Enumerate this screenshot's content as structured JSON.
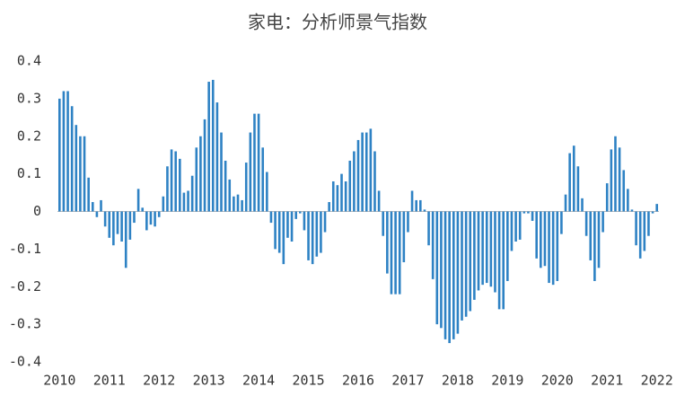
{
  "chart_data": {
    "type": "bar",
    "title": "家电：分析师景气指数",
    "categories": [
      "2010",
      null,
      null,
      null,
      null,
      null,
      null,
      null,
      null,
      null,
      null,
      null,
      "2011",
      null,
      null,
      null,
      null,
      null,
      null,
      null,
      null,
      null,
      null,
      null,
      "2012",
      null,
      null,
      null,
      null,
      null,
      null,
      null,
      null,
      null,
      null,
      null,
      "2013",
      null,
      null,
      null,
      null,
      null,
      null,
      null,
      null,
      null,
      null,
      null,
      "2014",
      null,
      null,
      null,
      null,
      null,
      null,
      null,
      null,
      null,
      null,
      null,
      "2015",
      null,
      null,
      null,
      null,
      null,
      null,
      null,
      null,
      null,
      null,
      null,
      "2016",
      null,
      null,
      null,
      null,
      null,
      null,
      null,
      null,
      null,
      null,
      null,
      "2017",
      null,
      null,
      null,
      null,
      null,
      null,
      null,
      null,
      null,
      null,
      null,
      "2018",
      null,
      null,
      null,
      null,
      null,
      null,
      null,
      null,
      null,
      null,
      null,
      "2019",
      null,
      null,
      null,
      null,
      null,
      null,
      null,
      null,
      null,
      null,
      null,
      "2020",
      null,
      null,
      null,
      null,
      null,
      null,
      null,
      null,
      null,
      null,
      null,
      "2021",
      null,
      null,
      null,
      null,
      null,
      null,
      null,
      null,
      null,
      null,
      null,
      "2022"
    ],
    "values": [
      0.3,
      0.32,
      0.32,
      0.28,
      0.23,
      0.2,
      0.2,
      0.09,
      0.025,
      -0.015,
      0.03,
      -0.04,
      -0.07,
      -0.09,
      -0.06,
      -0.08,
      -0.15,
      -0.075,
      -0.03,
      0.06,
      0.01,
      -0.05,
      -0.035,
      -0.04,
      -0.015,
      0.04,
      0.12,
      0.165,
      0.16,
      0.14,
      0.05,
      0.055,
      0.095,
      0.17,
      0.2,
      0.245,
      0.345,
      0.35,
      0.29,
      0.21,
      0.135,
      0.085,
      0.04,
      0.045,
      0.03,
      0.13,
      0.21,
      0.26,
      0.26,
      0.17,
      0.105,
      -0.03,
      -0.1,
      -0.11,
      -0.14,
      -0.07,
      -0.08,
      -0.02,
      -0.005,
      -0.05,
      -0.13,
      -0.14,
      -0.12,
      -0.11,
      -0.055,
      0.025,
      0.08,
      0.07,
      0.1,
      0.08,
      0.135,
      0.16,
      0.19,
      0.21,
      0.21,
      0.22,
      0.16,
      0.055,
      -0.065,
      -0.165,
      -0.22,
      -0.22,
      -0.22,
      -0.135,
      -0.055,
      0.055,
      0.03,
      0.03,
      0.005,
      -0.09,
      -0.18,
      -0.3,
      -0.31,
      -0.34,
      -0.35,
      -0.34,
      -0.325,
      -0.29,
      -0.28,
      -0.265,
      -0.235,
      -0.21,
      -0.195,
      -0.19,
      -0.2,
      -0.215,
      -0.26,
      -0.26,
      -0.185,
      -0.105,
      -0.08,
      -0.075,
      -0.005,
      -0.005,
      -0.025,
      -0.125,
      -0.15,
      -0.145,
      -0.19,
      -0.195,
      -0.185,
      -0.06,
      0.045,
      0.155,
      0.175,
      0.12,
      0.035,
      -0.065,
      -0.13,
      -0.185,
      -0.15,
      -0.055,
      0.075,
      0.165,
      0.2,
      0.17,
      0.11,
      0.06,
      0.005,
      -0.09,
      -0.125,
      -0.105,
      -0.065,
      -0.005,
      0.02
    ],
    "color": "#2e82c4",
    "ylim": [
      -0.4,
      0.4
    ],
    "yticks": [
      -0.4,
      -0.3,
      -0.2,
      -0.1,
      0,
      0.1,
      0.2,
      0.3,
      0.4
    ],
    "grid": false
  }
}
